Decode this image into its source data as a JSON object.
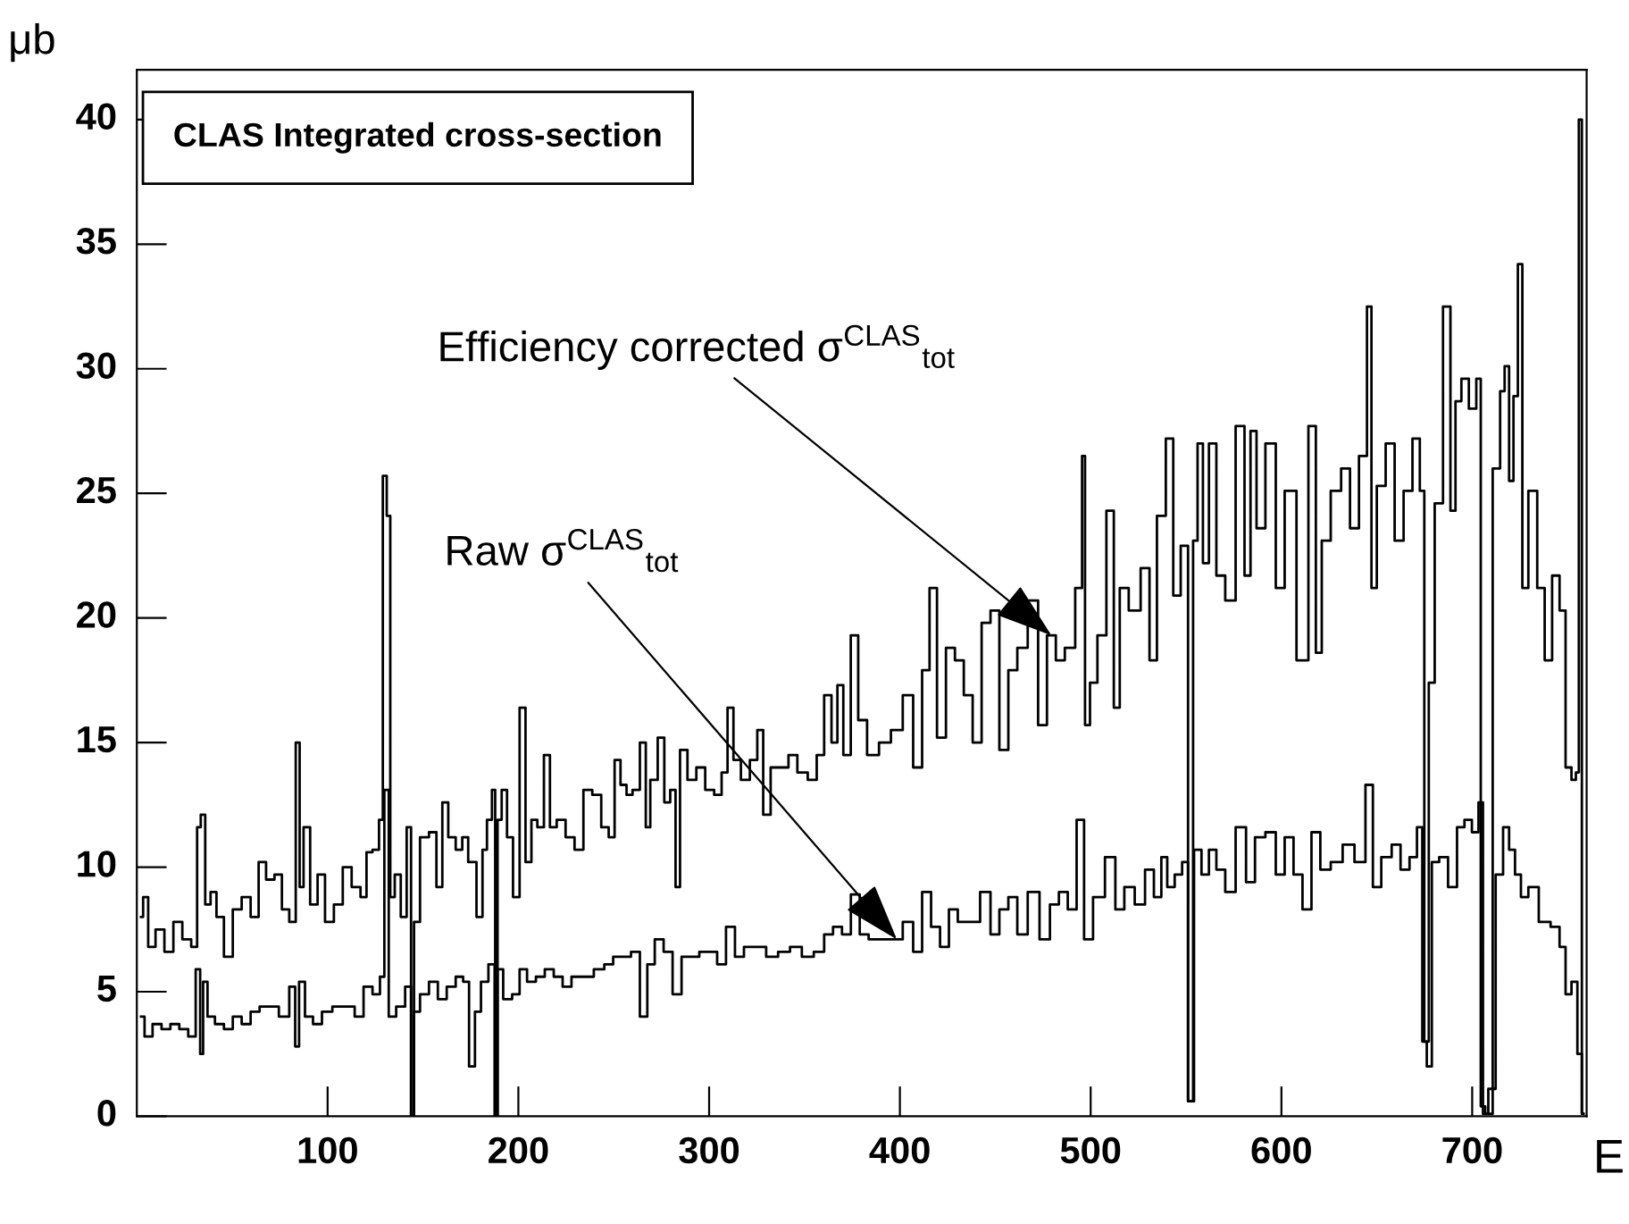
{
  "chart_data": {
    "type": "step",
    "title": "CLAS Integrated cross-section",
    "xlabel": "E",
    "ylabel": "μb",
    "xlim": [
      0,
      760
    ],
    "xticks": [
      100,
      200,
      300,
      400,
      500,
      600,
      700
    ],
    "ylim": [
      0,
      42
    ],
    "yticks": [
      0,
      5,
      10,
      15,
      20,
      25,
      30,
      35,
      40
    ],
    "annotations": [
      {
        "text": "Efficiency corrected σ$^{CLAS}$$_{tot}$",
        "x": 479.4,
        "y": 19.3
      },
      {
        "text": "Raw σ$^{CLAS}$$_{tot}$",
        "x": 398.4,
        "y": 7.1
      }
    ],
    "series": [
      {
        "color": "#000000",
        "x": [
          2.2,
          4.4,
          7.5,
          12.1,
          16.8,
          21.5,
          26.2,
          30.8,
          32.4,
          34.6,
          37.1,
          40.2,
          43.3,
          48.0,
          52.6,
          57.3,
          62.0,
          65.7,
          69.8,
          74.5,
          77.6,
          82.2,
          84.4,
          86.3,
          88.5,
          93.2,
          96.3,
          101.0,
          105.6,
          110.3,
          114.9,
          119.6,
          121.2,
          125.9,
          128.0,
          129.9,
          132.1,
          133.6,
          136.8,
          139.9,
          143.0,
          144.5,
          146.1,
          150.8,
          155.5,
          158.6,
          161.7,
          164.8,
          169.5,
          171.7,
          175.7,
          180.4,
          182.0,
          185.1,
          187.2,
          188.5,
          189.7,
          192.8,
          195.3,
          199.1,
          202.2,
          205.3,
          208.4,
          211.5,
          215.3,
          217.8,
          222.4,
          227.1,
          231.8,
          236.4,
          241.1,
          245.8,
          248.9,
          252.0,
          255.1,
          258.3,
          261.4,
          266.0,
          267.6,
          270.7,
          275.4,
          277.6,
          281.6,
          283.2,
          286.3,
          291.0,
          295.6,
          300.3,
          305.0,
          308.1,
          311.2,
          314.3,
          319.0,
          323.7,
          326.8,
          329.9,
          334.6,
          339.3,
          343.9,
          348.6,
          354.8,
          358.0,
          362.6,
          365.7,
          368.8,
          371.9,
          376.6,
          379.7,
          385.9,
          392.2,
          398.4,
          404.6,
          409.3,
          414.0,
          417.1,
          421.8,
          426.5,
          431.2,
          435.8,
          440.5,
          445.2,
          449.8,
          454.5,
          459.2,
          463.9,
          470.1,
          474.8,
          479.4,
          484.1,
          488.8,
          495.0,
          496.0,
          498.1,
          501.2,
          505.9,
          510.6,
          513.7,
          516.8,
          523.1,
          529.3,
          532.4,
          537.1,
          541.7,
          544.9,
          549.5,
          552.6,
          554.8,
          557.3,
          560.4,
          563.6,
          568.2,
          572.9,
          579.1,
          582.2,
          585.4,
          588.5,
          594.7,
          599.4,
          604.0,
          611.8,
          616.5,
          619.6,
          622.7,
          629.0,
          633.6,
          638.3,
          643.0,
          646.7,
          647.7,
          652.3,
          657.0,
          661.7,
          666.4,
          671.0,
          674.1,
          675.7,
          678.8,
          681.9,
          687.5,
          689.7,
          692.8,
          695.9,
          700.6,
          703.7,
          705.3,
          708.4,
          713.1,
          716.2,
          717.8,
          720.9,
          722.4,
          725.5,
          727.1,
          731.8,
          736.4,
          739.6,
          744.2,
          747.4,
          750.5,
          753.6,
          755.1,
          756.7,
          758.3
        ],
        "values": [
          8.0,
          8.8,
          6.8,
          7.5,
          6.6,
          7.8,
          7.1,
          6.8,
          11.6,
          12.1,
          8.5,
          9.0,
          8.0,
          6.4,
          8.3,
          8.8,
          8.0,
          10.2,
          9.5,
          9.7,
          8.3,
          7.8,
          15.0,
          9.2,
          11.6,
          8.5,
          9.7,
          7.8,
          8.5,
          10.0,
          9.2,
          8.8,
          10.6,
          10.7,
          11.9,
          25.7,
          24.1,
          8.8,
          9.7,
          8.0,
          11.6,
          0.0,
          7.8,
          11.2,
          11.4,
          9.2,
          12.6,
          11.2,
          10.7,
          11.2,
          10.2,
          8.0,
          10.7,
          11.9,
          13.1,
          0.0,
          11.9,
          13.1,
          11.2,
          8.8,
          16.4,
          10.2,
          11.9,
          11.6,
          14.5,
          11.6,
          11.9,
          11.2,
          10.7,
          13.1,
          12.9,
          11.6,
          11.2,
          14.3,
          13.3,
          12.9,
          13.1,
          15.0,
          11.6,
          13.5,
          15.2,
          12.6,
          13.1,
          9.2,
          14.7,
          13.5,
          14.0,
          13.1,
          12.9,
          13.8,
          16.4,
          14.3,
          13.5,
          14.3,
          15.5,
          12.1,
          14.0,
          14.0,
          14.5,
          13.8,
          13.5,
          14.5,
          16.9,
          15.0,
          17.3,
          14.5,
          19.3,
          15.9,
          14.5,
          15.0,
          15.5,
          16.9,
          14.0,
          17.9,
          21.2,
          15.2,
          18.8,
          18.3,
          16.9,
          15.0,
          19.8,
          20.3,
          14.7,
          17.9,
          18.8,
          20.7,
          15.7,
          19.3,
          18.3,
          18.8,
          21.2,
          26.5,
          15.7,
          17.4,
          19.3,
          24.3,
          16.4,
          21.2,
          20.3,
          22.0,
          18.3,
          24.1,
          27.2,
          20.9,
          22.9,
          0.6,
          23.1,
          27.0,
          22.2,
          27.0,
          21.7,
          20.7,
          27.7,
          21.7,
          27.5,
          23.6,
          27.0,
          21.2,
          25.1,
          18.3,
          27.7,
          18.6,
          23.1,
          25.1,
          26.0,
          23.6,
          26.5,
          32.5,
          21.2,
          25.3,
          27.0,
          23.1,
          25.1,
          27.2,
          25.1,
          3.0,
          17.4,
          24.6,
          32.5,
          24.3,
          28.7,
          29.6,
          28.4,
          29.6,
          0.4,
          0.1,
          26.0,
          29.1,
          30.1,
          25.5,
          28.9,
          34.2,
          21.2,
          25.1,
          21.2,
          18.3,
          21.7,
          20.3,
          14.0,
          13.5,
          13.8,
          40.0,
          0.1
        ]
      },
      {
        "color": "#000000",
        "x": [
          2.2,
          5.9,
          10.6,
          15.3,
          19.9,
          24.6,
          29.3,
          32.4,
          34.0,
          35.5,
          38.6,
          43.3,
          48.0,
          52.6,
          57.3,
          62.0,
          66.7,
          71.3,
          77.6,
          82.2,
          83.8,
          86.3,
          90.0,
          94.7,
          99.4,
          105.6,
          111.9,
          116.5,
          121.2,
          125.9,
          129.0,
          130.5,
          133.6,
          138.3,
          143.0,
          144.5,
          146.1,
          150.8,
          155.5,
          160.1,
          164.8,
          169.5,
          172.6,
          175.7,
          178.8,
          182.0,
          186.6,
          188.5,
          189.7,
          194.4,
          199.1,
          202.2,
          206.9,
          211.5,
          216.2,
          220.9,
          225.5,
          230.2,
          236.4,
          242.7,
          247.4,
          252.0,
          256.7,
          261.4,
          266.0,
          269.2,
          273.8,
          278.5,
          283.2,
          287.9,
          292.5,
          297.2,
          301.9,
          306.5,
          311.2,
          315.9,
          320.6,
          326.8,
          333.0,
          339.3,
          345.5,
          351.7,
          358.0,
          362.6,
          367.3,
          372.0,
          376.6,
          381.3,
          385.9,
          392.2,
          398.4,
          404.6,
          409.3,
          414.0,
          418.7,
          423.4,
          428.0,
          432.7,
          438.9,
          445.2,
          449.8,
          454.5,
          459.2,
          463.9,
          470.1,
          476.3,
          481.0,
          485.7,
          490.3,
          495.0,
          498.1,
          504.4,
          510.6,
          515.3,
          520.0,
          526.2,
          530.8,
          535.5,
          538.6,
          541.7,
          546.4,
          549.5,
          552.6,
          555.8,
          560.4,
          563.6,
          568.2,
          572.9,
          579.1,
          583.8,
          588.5,
          594.7,
          599.4,
          604.0,
          608.7,
          613.4,
          618.1,
          622.7,
          629.0,
          635.2,
          641.4,
          646.7,
          649.2,
          655.5,
          660.1,
          664.8,
          669.5,
          672.6,
          675.1,
          677.3,
          680.4,
          685.0,
          689.7,
          694.4,
          697.5,
          702.2,
          704.4,
          706.9,
          710.0,
          714.6,
          717.8,
          720.9,
          724.0,
          727.1,
          731.8,
          738.0,
          744.2,
          747.4,
          750.5,
          753.6,
          756.7,
          758.3
        ],
        "values": [
          4.0,
          3.2,
          3.7,
          3.5,
          3.7,
          3.5,
          3.2,
          5.9,
          2.5,
          5.4,
          4.0,
          3.7,
          3.5,
          4.0,
          3.7,
          4.2,
          4.4,
          4.4,
          4.0,
          5.2,
          2.8,
          5.4,
          4.0,
          3.7,
          4.2,
          4.4,
          4.4,
          4.0,
          5.2,
          4.9,
          5.6,
          13.1,
          4.0,
          4.4,
          5.2,
          0.0,
          4.2,
          4.9,
          5.4,
          4.7,
          5.2,
          5.6,
          5.4,
          2.0,
          4.2,
          5.4,
          6.1,
          0.0,
          5.9,
          4.7,
          4.9,
          5.9,
          5.4,
          5.6,
          5.9,
          5.6,
          5.2,
          5.6,
          5.6,
          5.9,
          6.1,
          6.4,
          6.4,
          6.6,
          4.0,
          6.1,
          7.1,
          6.6,
          4.9,
          6.4,
          6.4,
          6.6,
          6.6,
          6.1,
          7.6,
          6.4,
          6.8,
          6.8,
          6.4,
          6.6,
          6.8,
          6.4,
          6.6,
          7.3,
          7.6,
          7.3,
          8.9,
          7.3,
          7.1,
          7.1,
          7.1,
          7.8,
          6.6,
          9.0,
          7.6,
          6.8,
          8.3,
          7.8,
          7.8,
          9.0,
          7.3,
          8.3,
          8.8,
          7.3,
          9.0,
          7.1,
          8.5,
          9.0,
          8.3,
          11.9,
          7.1,
          8.8,
          10.4,
          8.3,
          9.2,
          8.5,
          9.9,
          8.8,
          10.4,
          9.2,
          9.7,
          10.2,
          0.6,
          10.7,
          9.7,
          10.7,
          9.9,
          9.0,
          11.6,
          9.4,
          11.2,
          11.4,
          9.7,
          11.2,
          9.7,
          8.3,
          11.4,
          9.9,
          10.2,
          10.9,
          10.2,
          13.3,
          9.2,
          10.4,
          10.9,
          9.9,
          10.4,
          11.6,
          3.0,
          2.0,
          10.2,
          10.4,
          9.2,
          11.6,
          11.9,
          11.4,
          12.6,
          0.1,
          1.1,
          9.7,
          11.6,
          10.7,
          9.7,
          8.8,
          9.2,
          7.8,
          7.6,
          6.8,
          4.9,
          5.4,
          2.5,
          0.1
        ]
      }
    ]
  }
}
